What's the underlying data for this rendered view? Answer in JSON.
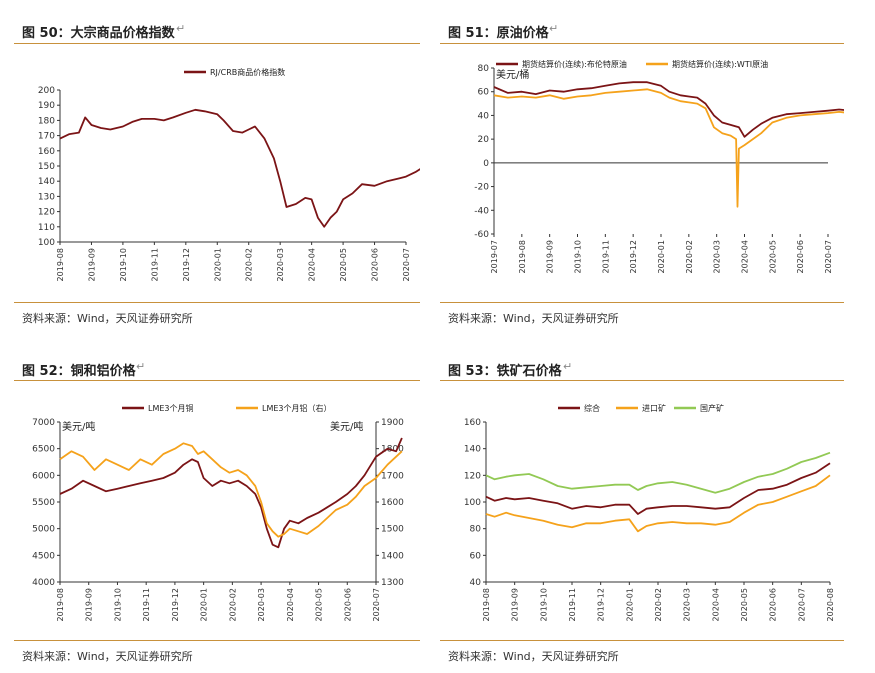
{
  "colors": {
    "darkred": "#7b1416",
    "orange": "#f5a21b",
    "green": "#92c954",
    "axis": "#333333",
    "rule": "#c8913c"
  },
  "return_mark": "↵",
  "charts": [
    {
      "title": "图 50：大宗商品价格指数",
      "source": "资料来源：Wind，天风证券研究所",
      "chart_data": {
        "type": "line",
        "legend": "top-center",
        "x_ticks": [
          "2019-08",
          "2019-09",
          "2019-10",
          "2019-11",
          "2019-12",
          "2020-01",
          "2020-02",
          "2020-03",
          "2020-04",
          "2020-05",
          "2020-06",
          "2020-07"
        ],
        "ylim": [
          100,
          200
        ],
        "y_ticks": [
          100,
          110,
          120,
          130,
          140,
          150,
          160,
          170,
          180,
          190,
          200
        ],
        "series": [
          {
            "name": "RJ/CRB商品价格指数",
            "color": "darkred",
            "x": [
              0,
              0.3,
              0.6,
              0.8,
              1,
              1.3,
              1.6,
              2,
              2.3,
              2.6,
              3,
              3.3,
              3.6,
              4,
              4.3,
              4.6,
              5,
              5.2,
              5.5,
              5.8,
              6,
              6.2,
              6.5,
              6.8,
              7,
              7.2,
              7.5,
              7.8,
              8,
              8.2,
              8.4,
              8.6,
              8.8,
              9,
              9.3,
              9.6,
              10,
              10.4,
              10.8,
              11,
              11.3,
              11.6,
              11.85
            ],
            "y": [
              168,
              171,
              172,
              182,
              177,
              175,
              174,
              176,
              179,
              181,
              181,
              180,
              182,
              185,
              187,
              186,
              184,
              180,
              173,
              172,
              174,
              176,
              168,
              155,
              140,
              123,
              125,
              129,
              128,
              116,
              110,
              116,
              120,
              128,
              132,
              138,
              137,
              140,
              142,
              143,
              146,
              150,
              151
            ]
          }
        ]
      }
    },
    {
      "title": "图 51：原油价格",
      "source": "资料来源：Wind，天风证券研究所",
      "chart_data": {
        "type": "line",
        "legend": "top",
        "y_unit": "美元/桶",
        "x_ticks": [
          "2019-07",
          "2019-08",
          "2019-09",
          "2019-10",
          "2019-11",
          "2019-12",
          "2020-01",
          "2020-02",
          "2020-03",
          "2020-04",
          "2020-05",
          "2020-06",
          "2020-07"
        ],
        "ylim": [
          -60,
          80
        ],
        "y_ticks": [
          -60,
          -40,
          -20,
          0,
          20,
          40,
          60,
          80
        ],
        "series": [
          {
            "name": "期货结算价(连续):布伦特原油",
            "color": "darkred",
            "x": [
              0,
              0.5,
              1,
              1.5,
              2,
              2.5,
              3,
              3.5,
              4,
              4.5,
              5,
              5.5,
              6,
              6.3,
              6.7,
              7,
              7.3,
              7.6,
              7.9,
              8.2,
              8.5,
              8.8,
              9,
              9.3,
              9.6,
              10,
              10.5,
              11,
              11.5,
              12,
              12.4,
              12.8
            ],
            "y": [
              64,
              59,
              60,
              58,
              61,
              60,
              62,
              63,
              65,
              67,
              68,
              68,
              65,
              60,
              57,
              56,
              55,
              50,
              40,
              34,
              32,
              30,
              22,
              28,
              33,
              38,
              41,
              42,
              43,
              44,
              45,
              44
            ]
          },
          {
            "name": "期货结算价(连续):WTI原油",
            "color": "orange",
            "x": [
              0,
              0.5,
              1,
              1.5,
              2,
              2.5,
              3,
              3.5,
              4,
              4.5,
              5,
              5.5,
              6,
              6.3,
              6.7,
              7,
              7.3,
              7.6,
              7.9,
              8.2,
              8.5,
              8.7,
              8.75,
              8.8,
              9,
              9.3,
              9.6,
              10,
              10.5,
              11,
              11.5,
              12,
              12.4,
              12.8
            ],
            "y": [
              57,
              55,
              56,
              55,
              57,
              54,
              56,
              57,
              59,
              60,
              61,
              62,
              59,
              55,
              52,
              51,
              50,
              46,
              30,
              25,
              23,
              20,
              -37,
              12,
              15,
              20,
              25,
              34,
              38,
              40,
              41,
              42,
              43,
              42
            ]
          }
        ]
      }
    },
    {
      "title": "图 52：铜和铝价格",
      "source": "资料来源：Wind，天风证券研究所",
      "chart_data": {
        "type": "line",
        "legend": "top",
        "y_unit_left": "美元/吨",
        "y_unit_right": "美元/吨",
        "x_ticks": [
          "2019-08",
          "2019-09",
          "2019-10",
          "2019-11",
          "2019-12",
          "2020-01",
          "2020-02",
          "2020-03",
          "2020-04",
          "2020-05",
          "2020-06",
          "2020-07"
        ],
        "ylim_left": [
          4000,
          7000
        ],
        "y_ticks_left": [
          4000,
          4500,
          5000,
          5500,
          6000,
          6500,
          7000
        ],
        "ylim_right": [
          1300,
          1900
        ],
        "y_ticks_right": [
          1300,
          1400,
          1500,
          1600,
          1700,
          1800,
          1900
        ],
        "series": [
          {
            "name": "LME3个月铜",
            "axis": "left",
            "color": "darkred",
            "x": [
              0,
              0.4,
              0.8,
              1.2,
              1.6,
              2,
              2.4,
              2.8,
              3.2,
              3.6,
              4,
              4.3,
              4.6,
              4.8,
              5,
              5.3,
              5.6,
              5.9,
              6.2,
              6.5,
              6.8,
              7,
              7.2,
              7.4,
              7.6,
              7.8,
              8,
              8.3,
              8.6,
              9,
              9.3,
              9.6,
              10,
              10.3,
              10.6,
              11,
              11.4,
              11.7,
              11.9
            ],
            "y": [
              5650,
              5750,
              5900,
              5800,
              5700,
              5750,
              5800,
              5850,
              5900,
              5950,
              6050,
              6200,
              6300,
              6250,
              5950,
              5800,
              5900,
              5850,
              5900,
              5800,
              5650,
              5400,
              5000,
              4700,
              4650,
              5000,
              5150,
              5100,
              5200,
              5300,
              5400,
              5500,
              5650,
              5800,
              6000,
              6350,
              6500,
              6450,
              6700
            ]
          },
          {
            "name": "LME3个月铝（右）",
            "axis": "right",
            "color": "orange",
            "x": [
              0,
              0.4,
              0.8,
              1.2,
              1.6,
              2,
              2.4,
              2.8,
              3.2,
              3.6,
              4,
              4.3,
              4.6,
              4.8,
              5,
              5.3,
              5.6,
              5.9,
              6.2,
              6.5,
              6.8,
              7,
              7.2,
              7.4,
              7.6,
              7.8,
              8,
              8.3,
              8.6,
              9,
              9.3,
              9.6,
              10,
              10.3,
              10.6,
              11,
              11.4,
              11.7,
              11.9
            ],
            "y": [
              1760,
              1790,
              1770,
              1720,
              1760,
              1740,
              1720,
              1760,
              1740,
              1780,
              1800,
              1820,
              1810,
              1780,
              1790,
              1760,
              1730,
              1710,
              1720,
              1700,
              1660,
              1600,
              1520,
              1490,
              1470,
              1480,
              1500,
              1490,
              1480,
              1510,
              1540,
              1570,
              1590,
              1620,
              1660,
              1690,
              1740,
              1770,
              1790
            ]
          }
        ]
      }
    },
    {
      "title": "图 53：铁矿石价格",
      "source": "资料来源：Wind，天风证券研究所",
      "chart_data": {
        "type": "line",
        "legend": "top",
        "x_ticks": [
          "2019-08",
          "2019-09",
          "2019-10",
          "2019-11",
          "2019-12",
          "2020-01",
          "2020-02",
          "2020-03",
          "2020-04",
          "2020-05",
          "2020-06",
          "2020-07",
          "2020-08"
        ],
        "ylim": [
          40,
          160
        ],
        "y_ticks": [
          40,
          60,
          80,
          100,
          120,
          140,
          160
        ],
        "series": [
          {
            "name": "综合",
            "color": "darkred",
            "x": [
              0,
              0.3,
              0.7,
              1,
              1.5,
              2,
              2.5,
              3,
              3.5,
              4,
              4.5,
              5,
              5.3,
              5.6,
              6,
              6.5,
              7,
              7.5,
              8,
              8.5,
              9,
              9.5,
              10,
              10.5,
              11,
              11.5,
              12
            ],
            "y": [
              104,
              101,
              103,
              102,
              103,
              101,
              99,
              95,
              97,
              96,
              98,
              98,
              91,
              95,
              96,
              97,
              97,
              96,
              95,
              96,
              103,
              109,
              110,
              113,
              118,
              122,
              129
            ]
          },
          {
            "name": "进口矿",
            "color": "orange",
            "x": [
              0,
              0.3,
              0.7,
              1,
              1.5,
              2,
              2.5,
              3,
              3.5,
              4,
              4.5,
              5,
              5.3,
              5.6,
              6,
              6.5,
              7,
              7.5,
              8,
              8.5,
              9,
              9.5,
              10,
              10.5,
              11,
              11.5,
              12
            ],
            "y": [
              91,
              89,
              92,
              90,
              88,
              86,
              83,
              81,
              84,
              84,
              86,
              87,
              78,
              82,
              84,
              85,
              84,
              84,
              83,
              85,
              92,
              98,
              100,
              104,
              108,
              112,
              120
            ]
          },
          {
            "name": "国产矿",
            "color": "green",
            "x": [
              0,
              0.3,
              0.7,
              1,
              1.5,
              2,
              2.5,
              3,
              3.5,
              4,
              4.5,
              5,
              5.3,
              5.6,
              6,
              6.5,
              7,
              7.5,
              8,
              8.5,
              9,
              9.5,
              10,
              10.5,
              11,
              11.5,
              12
            ],
            "y": [
              120,
              117,
              119,
              120,
              121,
              117,
              112,
              110,
              111,
              112,
              113,
              113,
              109,
              112,
              114,
              115,
              113,
              110,
              107,
              110,
              115,
              119,
              121,
              125,
              130,
              133,
              137
            ]
          }
        ]
      }
    }
  ]
}
